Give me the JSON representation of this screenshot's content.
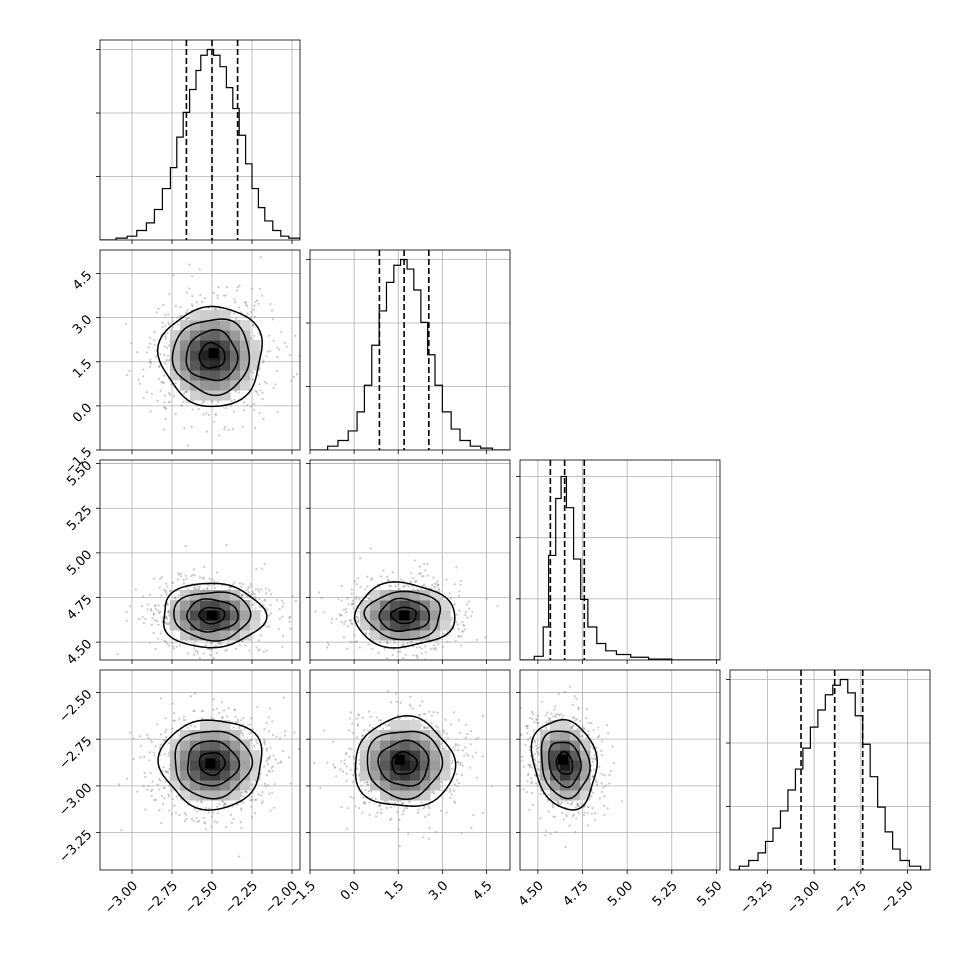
{
  "chart_data": {
    "type": "corner",
    "title": "",
    "grid": true,
    "n_params": 4,
    "colors": {
      "line": "#000000",
      "grid": "#b0b0b0",
      "scatter": "#8a8a8a",
      "frame": "#000000"
    },
    "axes": [
      {
        "index": 0,
        "range": [
          -3.2,
          -1.95
        ],
        "ticks": [
          -3.0,
          -2.75,
          -2.5,
          -2.25,
          -2.0
        ],
        "tick_labels": [
          "−3.00",
          "−2.75",
          "−2.50",
          "−2.25",
          "−2.00"
        ],
        "quantiles": [
          -2.66,
          -2.5,
          -2.34
        ],
        "hist_ymax": 1.05,
        "hist_gridlines": [
          0.3333,
          0.6667,
          1.0
        ],
        "hist_bins": [
          -3.2,
          -3.1,
          -3.03,
          -2.97,
          -2.91,
          -2.86,
          -2.81,
          -2.76,
          -2.72,
          -2.68,
          -2.64,
          -2.6,
          -2.57,
          -2.53,
          -2.49,
          -2.45,
          -2.41,
          -2.37,
          -2.33,
          -2.29,
          -2.25,
          -2.21,
          -2.17,
          -2.12,
          -2.07,
          -2.02,
          -1.95
        ],
        "hist_counts": [
          0.0,
          0.01,
          0.02,
          0.05,
          0.09,
          0.16,
          0.27,
          0.38,
          0.54,
          0.67,
          0.79,
          0.89,
          0.97,
          1.0,
          0.97,
          0.91,
          0.8,
          0.69,
          0.55,
          0.4,
          0.27,
          0.17,
          0.1,
          0.05,
          0.02,
          0.01
        ]
      },
      {
        "index": 1,
        "range": [
          -1.5,
          5.3
        ],
        "ticks": [
          -1.5,
          0.0,
          1.5,
          3.0,
          4.5
        ],
        "tick_labels": [
          "−1.5",
          "0.0",
          "1.5",
          "3.0",
          "4.5"
        ],
        "quantiles": [
          0.86,
          1.7,
          2.54
        ],
        "hist_ymax": 1.05,
        "hist_gridlines": [
          0.3333,
          0.6667,
          1.0
        ],
        "hist_bins": [
          -1.5,
          -0.9,
          -0.55,
          -0.2,
          0.1,
          0.35,
          0.6,
          0.85,
          1.1,
          1.35,
          1.58,
          1.8,
          2.03,
          2.27,
          2.5,
          2.75,
          3.0,
          3.3,
          3.6,
          3.95,
          4.3,
          4.7,
          5.3
        ],
        "hist_counts": [
          0.0,
          0.02,
          0.05,
          0.1,
          0.2,
          0.34,
          0.55,
          0.73,
          0.88,
          0.97,
          1.0,
          0.95,
          0.84,
          0.67,
          0.5,
          0.34,
          0.2,
          0.11,
          0.05,
          0.02,
          0.01,
          0.0
        ]
      },
      {
        "index": 2,
        "range": [
          4.4,
          5.52
        ],
        "ticks": [
          4.5,
          4.75,
          5.0,
          5.25,
          5.5
        ],
        "tick_labels": [
          "4.50",
          "4.75",
          "5.00",
          "5.25",
          "5.50"
        ],
        "quantiles": [
          4.57,
          4.65,
          4.76
        ],
        "hist_ymax": 1.09,
        "hist_gridlines": [
          0.3333,
          0.6667,
          1.0
        ],
        "hist_bins": [
          4.4,
          4.48,
          4.53,
          4.56,
          4.6,
          4.63,
          4.66,
          4.7,
          4.74,
          4.78,
          4.83,
          4.88,
          4.94,
          5.02,
          5.12,
          5.25,
          5.52
        ],
        "hist_counts": [
          0.0,
          0.02,
          0.18,
          0.57,
          0.88,
          1.0,
          0.83,
          0.55,
          0.33,
          0.18,
          0.09,
          0.05,
          0.03,
          0.015,
          0.005,
          0.0
        ]
      },
      {
        "index": 3,
        "range": [
          -3.45,
          -2.38
        ],
        "ticks": [
          -3.25,
          -3.0,
          -2.75,
          -2.5
        ],
        "tick_labels": [
          "−3.25",
          "−3.00",
          "−2.75",
          "−2.50"
        ],
        "quantiles": [
          -3.07,
          -2.89,
          -2.74
        ],
        "hist_ymax": 1.05,
        "hist_gridlines": [
          0.3333,
          0.6667,
          1.0
        ],
        "hist_bins": [
          -3.45,
          -3.4,
          -3.35,
          -3.3,
          -3.26,
          -3.22,
          -3.18,
          -3.14,
          -3.1,
          -3.06,
          -3.02,
          -2.98,
          -2.94,
          -2.9,
          -2.86,
          -2.82,
          -2.78,
          -2.74,
          -2.7,
          -2.66,
          -2.62,
          -2.58,
          -2.54,
          -2.49,
          -2.43,
          -2.38
        ],
        "hist_counts": [
          0.0,
          0.02,
          0.05,
          0.09,
          0.15,
          0.22,
          0.31,
          0.42,
          0.53,
          0.64,
          0.75,
          0.84,
          0.92,
          0.97,
          1.0,
          0.93,
          0.81,
          0.66,
          0.49,
          0.33,
          0.2,
          0.11,
          0.05,
          0.02,
          0.0
        ]
      }
    ],
    "pairs": [
      {
        "x": 0,
        "y": 1,
        "mean": [
          -2.5,
          1.7
        ],
        "sd": [
          0.16,
          0.85
        ],
        "rho": 0.0,
        "contour_levels_sigma": [
          0.5,
          1.0,
          1.5,
          2.0
        ],
        "peak": [
          -2.49,
          1.8
        ]
      },
      {
        "x": 0,
        "y": 2,
        "mean": [
          -2.5,
          4.65
        ],
        "sd": [
          0.16,
          0.09
        ],
        "rho": 0.0,
        "contour_levels_sigma": [
          0.5,
          1.0,
          1.5,
          2.0
        ],
        "peak": [
          -2.5,
          4.65
        ]
      },
      {
        "x": 1,
        "y": 2,
        "mean": [
          1.7,
          4.65
        ],
        "sd": [
          0.85,
          0.09
        ],
        "rho": 0.0,
        "contour_levels_sigma": [
          0.5,
          1.0,
          1.5,
          2.0
        ],
        "peak": [
          1.7,
          4.65
        ]
      },
      {
        "x": 0,
        "y": 3,
        "mean": [
          -2.5,
          -2.88
        ],
        "sd": [
          0.16,
          0.12
        ],
        "rho": 0.0,
        "contour_levels_sigma": [
          0.5,
          1.0,
          1.5,
          2.0
        ],
        "peak": [
          -2.51,
          -2.88
        ]
      },
      {
        "x": 1,
        "y": 3,
        "mean": [
          1.7,
          -2.88
        ],
        "sd": [
          0.85,
          0.12
        ],
        "rho": 0.0,
        "contour_levels_sigma": [
          0.5,
          1.0,
          1.5,
          2.0
        ],
        "peak": [
          1.55,
          -2.86
        ]
      },
      {
        "x": 2,
        "y": 3,
        "mean": [
          4.65,
          -2.88
        ],
        "sd": [
          0.09,
          0.12
        ],
        "rho": -0.15,
        "contour_levels_sigma": [
          0.5,
          1.0,
          1.5,
          2.0
        ],
        "peak": [
          4.64,
          -2.86
        ]
      }
    ]
  }
}
